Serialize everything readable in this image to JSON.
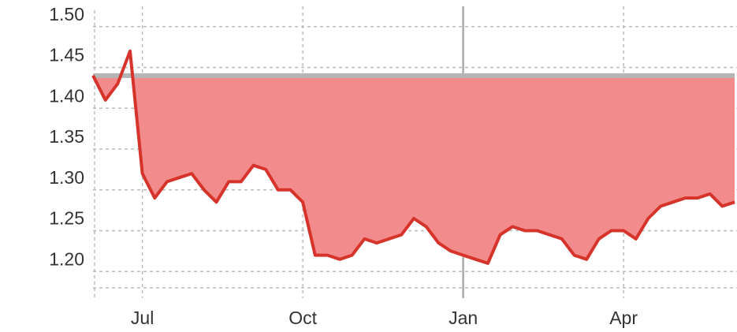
{
  "chart_data": {
    "type": "line",
    "x": [
      0,
      1,
      2,
      3,
      4,
      5,
      6,
      7,
      8,
      9,
      10,
      11,
      12,
      13,
      14,
      15,
      16,
      17,
      18,
      19,
      20,
      21,
      22,
      23,
      24,
      25,
      26,
      27,
      28,
      29,
      30,
      31,
      32,
      33,
      34,
      35,
      36,
      37,
      38,
      39,
      40,
      41,
      42,
      43,
      44,
      45,
      46,
      47,
      48,
      49,
      50,
      51,
      52
    ],
    "series": [
      {
        "name": null,
        "color": "#d6332b",
        "fill": "#f28b8b",
        "values": [
          1.44,
          1.41,
          1.43,
          1.47,
          1.32,
          1.29,
          1.31,
          1.315,
          1.32,
          1.3,
          1.285,
          1.31,
          1.31,
          1.33,
          1.325,
          1.3,
          1.3,
          1.285,
          1.22,
          1.22,
          1.215,
          1.22,
          1.24,
          1.235,
          1.24,
          1.245,
          1.265,
          1.255,
          1.235,
          1.225,
          1.22,
          1.215,
          1.21,
          1.245,
          1.255,
          1.25,
          1.25,
          1.245,
          1.24,
          1.22,
          1.215,
          1.24,
          1.25,
          1.25,
          1.24,
          1.265,
          1.28,
          1.285,
          1.29,
          1.29,
          1.295,
          1.28,
          1.285
        ]
      }
    ],
    "reference_line": 1.44,
    "xlim": [
      0,
      52
    ],
    "xticks": [
      {
        "value": 4,
        "label": "Jul"
      },
      {
        "value": 17,
        "label": "Oct"
      },
      {
        "value": 30,
        "label": "Jan"
      },
      {
        "value": 43,
        "label": "Apr"
      }
    ],
    "solid_xtick": 2,
    "ylim": [
      1.18,
      1.52
    ],
    "yticks": [
      {
        "value": 1.5,
        "label": "1.50"
      },
      {
        "value": 1.45,
        "label": "1.45"
      },
      {
        "value": 1.4,
        "label": "1.40"
      },
      {
        "value": 1.35,
        "label": "1.35"
      },
      {
        "value": 1.3,
        "label": "1.30"
      },
      {
        "value": 1.25,
        "label": "1.25"
      },
      {
        "value": 1.2,
        "label": "1.20"
      }
    ],
    "grid": true
  }
}
